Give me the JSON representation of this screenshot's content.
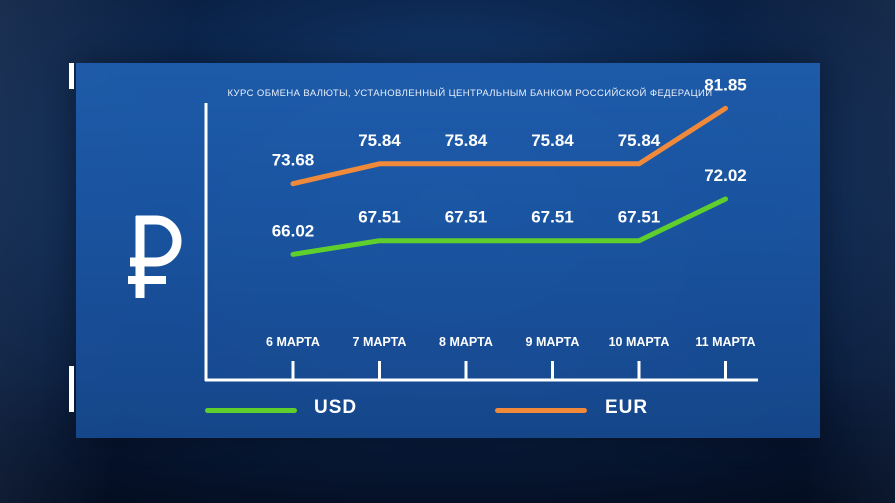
{
  "chart_data": {
    "type": "line",
    "title": "КУРС ОБМЕНА ВАЛЮТЫ, УСТАНОВЛЕННЫЙ ЦЕНТРАЛЬНЫМ БАНКОМ РОССИЙСКОЙ ФЕДЕРАЦИИ",
    "categories": [
      "6 МАРТА",
      "7 МАРТА",
      "8 МАРТА",
      "9 МАРТА",
      "10 МАРТА",
      "11 МАРТА"
    ],
    "series": [
      {
        "name": "USD",
        "color": "#5fcf2e",
        "values": [
          66.02,
          67.51,
          67.51,
          67.51,
          67.51,
          72.02
        ],
        "labels": [
          "66.02",
          "67.51",
          "67.51",
          "67.51",
          "67.51",
          "72.02"
        ]
      },
      {
        "name": "EUR",
        "color": "#f08a3a",
        "values": [
          73.68,
          75.84,
          75.84,
          75.84,
          75.84,
          81.85
        ],
        "labels": [
          "73.68",
          "75.84",
          "75.84",
          "75.84",
          "75.84",
          "81.85"
        ]
      }
    ],
    "ylim": [
      60,
      86
    ],
    "grid": false,
    "legend_placement": "bottom"
  },
  "currency_symbol": "₽"
}
